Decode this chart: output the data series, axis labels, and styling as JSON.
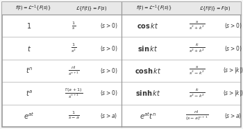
{
  "bg_color": "#f5f5f5",
  "table_bg": "#ffffff",
  "header_bg": "#e8e8e8",
  "border_color": "#999999",
  "text_color": "#333333",
  "header_color": "#111111",
  "left_rows": [
    [
      "$1$",
      "$\\frac{1}{s}$",
      "$(s>0)$"
    ],
    [
      "$t$",
      "$\\frac{1}{s^2}$",
      "$(s>0)$"
    ],
    [
      "$t^n$",
      "$\\frac{n!}{s^{n+1}}$",
      "$(s>0)$"
    ],
    [
      "$t^a$",
      "$\\frac{\\Gamma(a+1)}{s^{n+1}}$",
      "$(s>0)$"
    ],
    [
      "$e^{at}$",
      "$\\frac{1}{s-a}$",
      "$(s>a)$"
    ]
  ],
  "right_rows": [
    [
      "$\\mathbf{cos}\\,kt$",
      "$\\frac{s}{s^2+k^2}$",
      "$(s>0)$"
    ],
    [
      "$\\mathbf{sin}\\,kt$",
      "$\\frac{k}{s^2+k^2}$",
      "$(s>0)$"
    ],
    [
      "$\\mathbf{cosh}\\,kt$",
      "$\\frac{s}{s^2-k^2}$",
      "$(s>|k|)$"
    ],
    [
      "$\\mathbf{sinh}\\,kt$",
      "$\\frac{k}{s^2-k^2}$",
      "$(s>|k|)$"
    ],
    [
      "$e^{at}t^n$",
      "$\\frac{n!}{(s-a)^{n+1}}$",
      "$(s>a)$"
    ]
  ],
  "figsize": [
    3.5,
    1.86
  ],
  "dpi": 100
}
